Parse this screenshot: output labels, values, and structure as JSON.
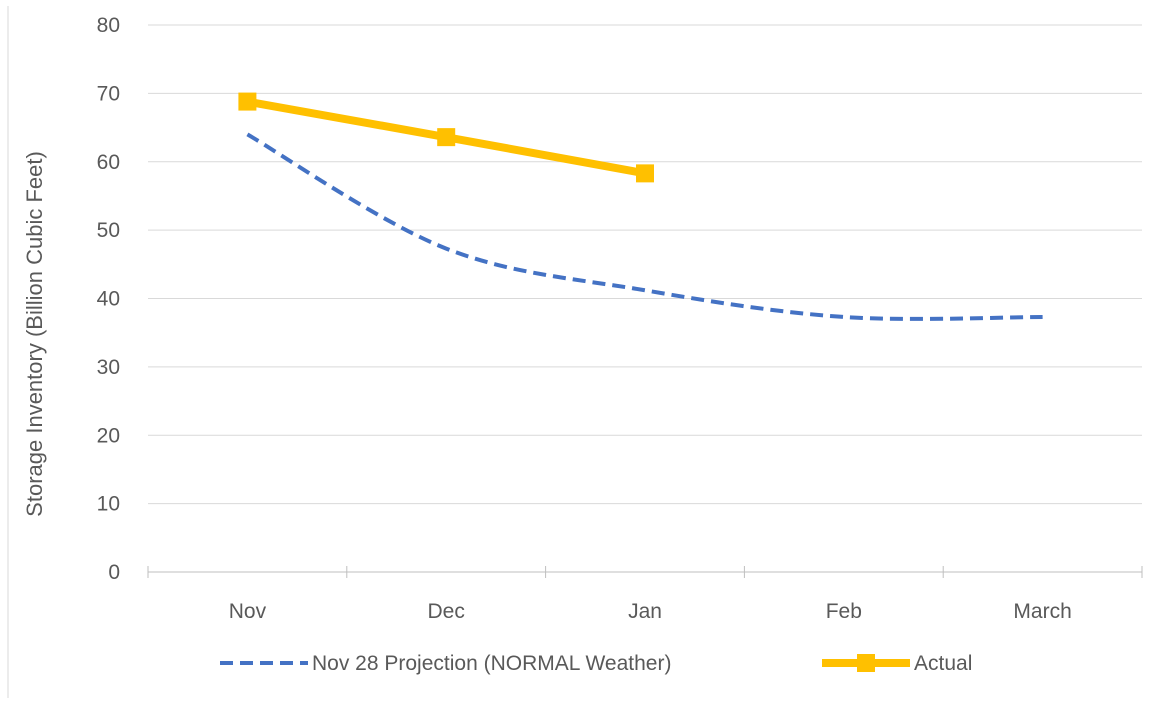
{
  "chart_data": {
    "type": "line",
    "title": "",
    "ylabel": "Storage Inventory (Billion Cubic Feet)",
    "xlabel": "",
    "categories": [
      "Nov",
      "Dec",
      "Jan",
      "Feb",
      "March"
    ],
    "ylim": [
      0,
      80
    ],
    "yticks": [
      0,
      10,
      20,
      30,
      40,
      50,
      60,
      70,
      80
    ],
    "grid": true,
    "legend_position": "bottom",
    "series": [
      {
        "name": "Nov 28 Projection (NORMAL Weather)",
        "style": "dashed",
        "color": "#4472c4",
        "x": [
          0,
          1,
          2,
          3,
          4
        ],
        "values": [
          64,
          47.3,
          41.2,
          37.3,
          37.3
        ]
      },
      {
        "name": "Actual",
        "style": "solid-square-markers",
        "color": "#ffc000",
        "x": [
          0,
          1,
          2
        ],
        "values": [
          68.8,
          63.6,
          58.3
        ]
      }
    ]
  }
}
